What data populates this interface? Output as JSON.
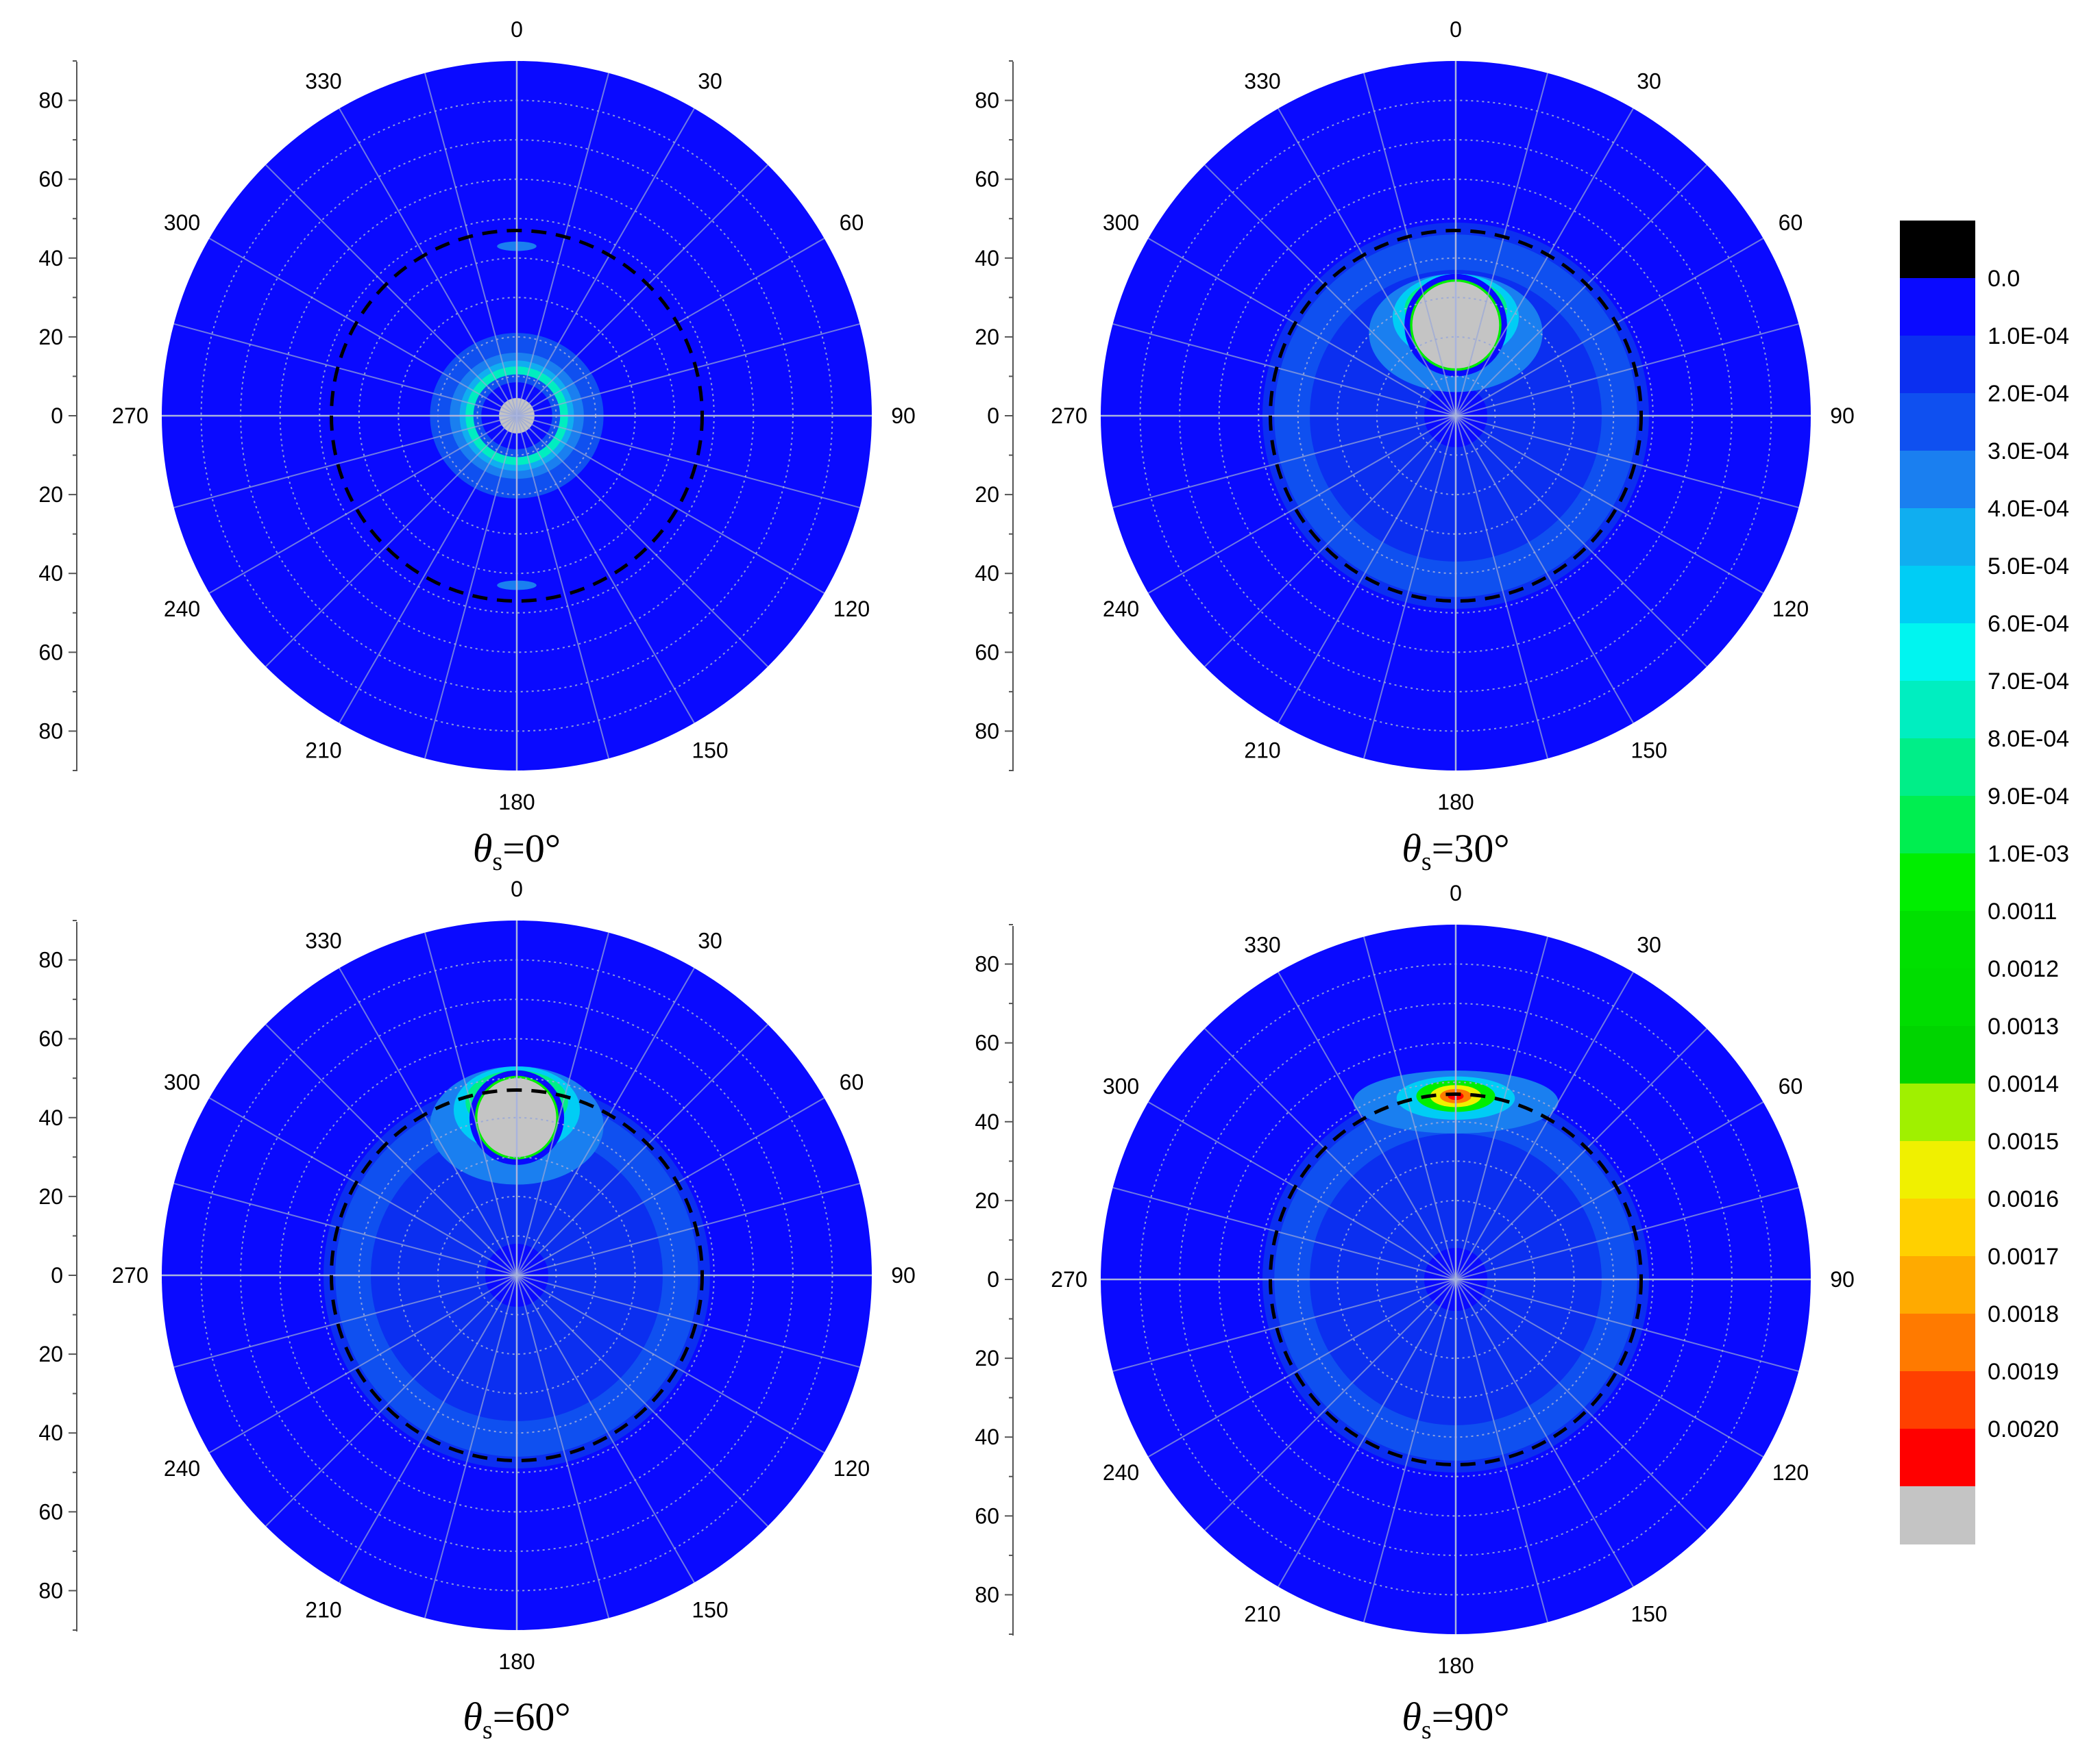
{
  "chart_data": {
    "type": "polar-contour",
    "panels": [
      {
        "caption_symbol": "θ",
        "caption_subscript": "s",
        "caption_value": "=0°",
        "features": {
          "ring_dash_r": 47,
          "blob": {
            "theta": 0,
            "r": 0,
            "rad": 10
          },
          "halo": "center"
        }
      },
      {
        "caption_symbol": "θ",
        "caption_subscript": "s",
        "caption_value": "=30°",
        "features": {
          "ring_dash_r": 47,
          "blob": {
            "theta": 0,
            "r": 23,
            "rad": 11
          },
          "halo": "upper"
        }
      },
      {
        "caption_symbol": "θ",
        "caption_subscript": "s",
        "caption_value": "=60°",
        "features": {
          "ring_dash_r": 47,
          "blob": {
            "theta": 0,
            "r": 40,
            "rad": 10
          },
          "halo": "upper"
        }
      },
      {
        "caption_symbol": "θ",
        "caption_subscript": "s",
        "caption_value": "=90°",
        "features": {
          "ring_dash_r": 47,
          "blob": null,
          "hotspot": {
            "theta": 0,
            "r": 48
          },
          "halo": "top"
        }
      }
    ],
    "angular_ticks": [
      "0",
      "30",
      "60",
      "90",
      "120",
      "150",
      "180",
      "210",
      "240",
      "270",
      "300",
      "330"
    ],
    "radial_ticks_top": [
      "80",
      "60",
      "40",
      "20",
      "0"
    ],
    "radial_ticks_bottom": [
      "20",
      "40",
      "60",
      "80"
    ],
    "radial_max": 90,
    "colorbar": {
      "labels": [
        "0.0",
        "1.0E-04",
        "2.0E-04",
        "3.0E-04",
        "4.0E-04",
        "5.0E-04",
        "6.0E-04",
        "7.0E-04",
        "8.0E-04",
        "9.0E-04",
        "1.0E-03",
        "0.0011",
        "0.0012",
        "0.0013",
        "0.0014",
        "0.0015",
        "0.0016",
        "0.0017",
        "0.0018",
        "0.0019",
        "0.0020"
      ],
      "colors": [
        "#000000",
        "#0a0aff",
        "#0b2ff0",
        "#0f50f0",
        "#1a7ff0",
        "#10aef0",
        "#00cdf5",
        "#00f5f0",
        "#00eec0",
        "#00ee88",
        "#00ee50",
        "#00ee00",
        "#00e000",
        "#00dd00",
        "#00d400",
        "#a0f000",
        "#f0f000",
        "#ffd000",
        "#ffaa00",
        "#ff7a00",
        "#ff4000",
        "#ff0000",
        "#c4c4c4"
      ]
    }
  }
}
